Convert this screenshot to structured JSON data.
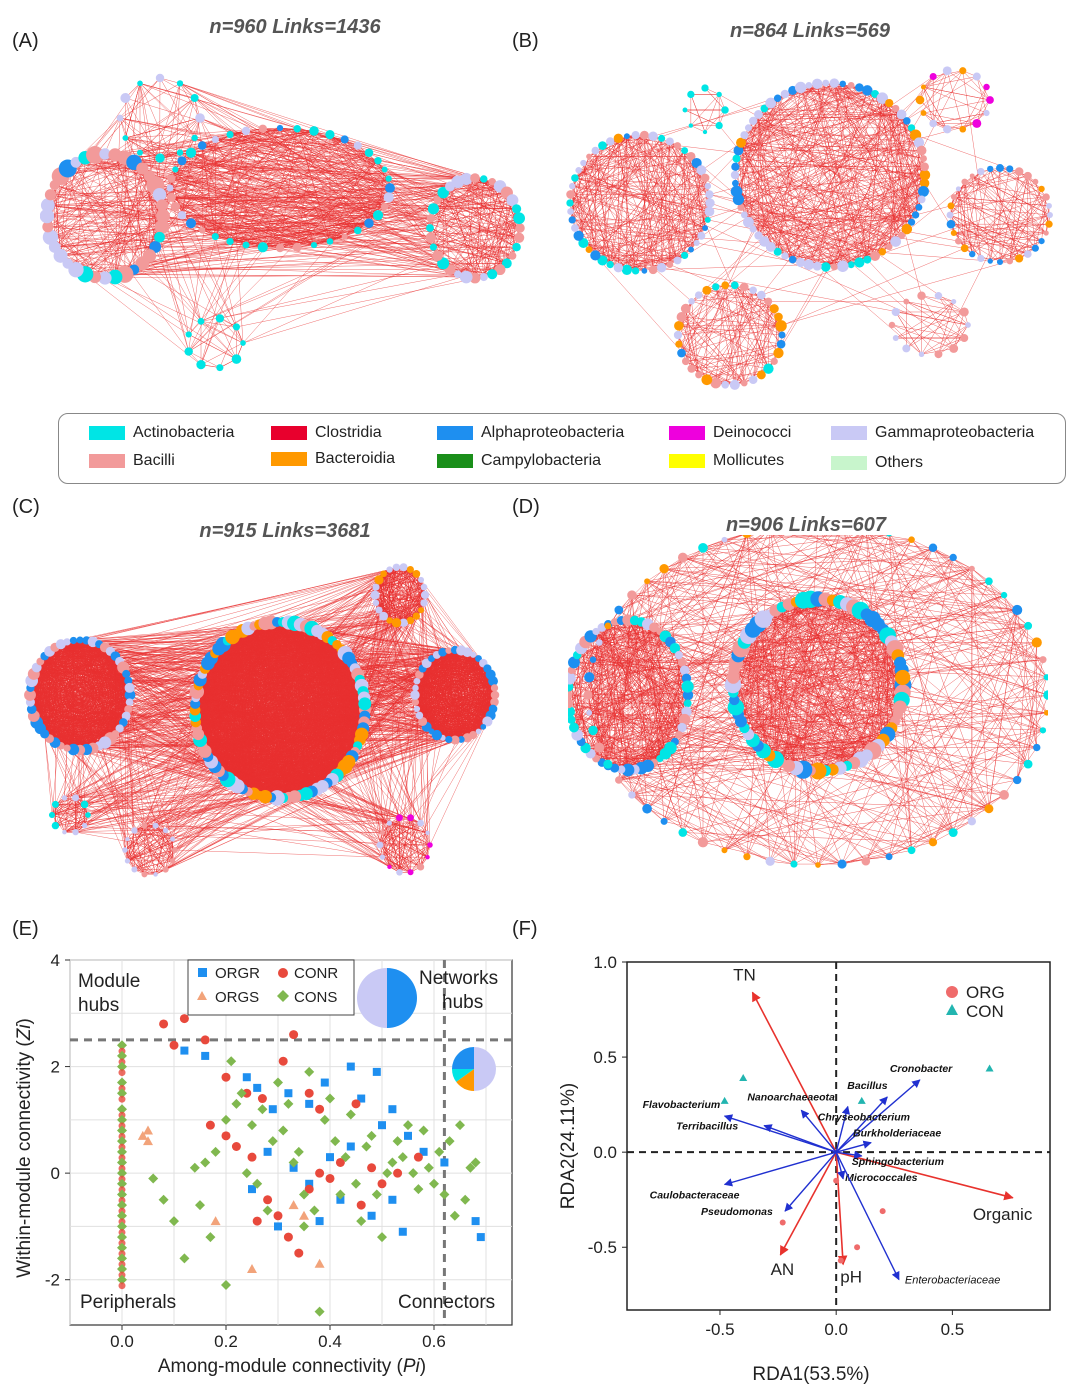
{
  "panels": {
    "A": {
      "letter": "(A)",
      "title": "n=960   Links=1436"
    },
    "B": {
      "letter": "(B)",
      "title": "n=864   Links=569"
    },
    "C": {
      "letter": "(C)",
      "title": "n=915   Links=3681"
    },
    "D": {
      "letter": "(D)",
      "title": "n=906   Links=607"
    },
    "E": {
      "letter": "(E)"
    },
    "F": {
      "letter": "(F)"
    }
  },
  "legend": {
    "items": [
      {
        "label": "Actinobacteria",
        "color": "#00e5e5"
      },
      {
        "label": "Clostridia",
        "color": "#e8002d"
      },
      {
        "label": "Alphaproteobacteria",
        "color": "#1e8ff0"
      },
      {
        "label": "Deinococci",
        "color": "#ee00dd"
      },
      {
        "label": "Gammaproteobacteria",
        "color": "#c9c9f5"
      },
      {
        "label": "Bacilli",
        "color": "#f29a9a"
      },
      {
        "label": "Bacteroidia",
        "color": "#ff9900"
      },
      {
        "label": "Campylobacteria",
        "color": "#1a8f1a"
      },
      {
        "label": "Mollicutes",
        "color": "#ffff00"
      },
      {
        "label": "Others",
        "color": "#c8f5cc"
      }
    ]
  },
  "chart_data": [
    {
      "type": "scatter",
      "panel": "E",
      "xlabel_prefix": "Among-module connectivity (",
      "xlabel_var": "Pi",
      "xlabel_suffix": ")",
      "ylabel_prefix": "Within-module connectivity (",
      "ylabel_var": "Zi",
      "ylabel_suffix": ")",
      "xlim": [
        -0.1,
        0.75
      ],
      "ylim": [
        -2.85,
        4
      ],
      "xticks": [
        "0.0",
        "0.2",
        "0.4",
        "0.6"
      ],
      "xtick_values": [
        0,
        0.2,
        0.4,
        0.6
      ],
      "yticks": [
        "-2",
        "0",
        "2",
        "4"
      ],
      "ytick_values": [
        -2,
        0,
        2,
        4
      ],
      "thresholds": {
        "zi": 2.5,
        "pi": 0.62
      },
      "region_labels": {
        "module_hubs_1": "Module",
        "module_hubs_2": "hubs",
        "network_hubs_1": "Networks",
        "network_hubs_2": "hubs",
        "peripherals": "Peripherals",
        "connectors": "Connectors"
      },
      "legend": [
        {
          "label": "ORGR",
          "color": "#1e8ff0",
          "shape": "square"
        },
        {
          "label": "CONR",
          "color": "#e8493c",
          "shape": "circle"
        },
        {
          "label": "ORGS",
          "color": "#f2a37a",
          "shape": "triangle"
        },
        {
          "label": "CONS",
          "color": "#80b84f",
          "shape": "diamond"
        }
      ],
      "series": [
        {
          "name": "ORGR",
          "points": [
            [
              0.12,
              2.3
            ],
            [
              0.16,
              2.2
            ],
            [
              0.24,
              1.8
            ],
            [
              0.26,
              1.6
            ],
            [
              0.29,
              1.2
            ],
            [
              0.32,
              1.5
            ],
            [
              0.36,
              1.3
            ],
            [
              0.39,
              1.7
            ],
            [
              0.44,
              2.0
            ],
            [
              0.46,
              1.4
            ],
            [
              0.49,
              1.9
            ],
            [
              0.52,
              1.2
            ],
            [
              0.28,
              0.4
            ],
            [
              0.33,
              0.1
            ],
            [
              0.36,
              -0.2
            ],
            [
              0.4,
              0.3
            ],
            [
              0.44,
              0.5
            ],
            [
              0.48,
              -0.8
            ],
            [
              0.52,
              -0.5
            ],
            [
              0.55,
              0.7
            ],
            [
              0.68,
              -0.9
            ],
            [
              0.69,
              -1.2
            ],
            [
              0.58,
              0.4
            ],
            [
              0.62,
              0.2
            ],
            [
              0.25,
              -0.3
            ],
            [
              0.3,
              -1.0
            ],
            [
              0.38,
              -0.9
            ],
            [
              0.42,
              -0.5
            ],
            [
              0.5,
              0.9
            ],
            [
              0.54,
              -1.1
            ]
          ]
        },
        {
          "name": "CONR",
          "points": [
            [
              0.08,
              2.8
            ],
            [
              0.12,
              2.9
            ],
            [
              0.1,
              2.4
            ],
            [
              0.16,
              2.5
            ],
            [
              0.2,
              1.8
            ],
            [
              0.24,
              1.5
            ],
            [
              0.27,
              1.4
            ],
            [
              0.31,
              2.1
            ],
            [
              0.33,
              2.6
            ],
            [
              0.36,
              1.5
            ],
            [
              0.38,
              1.2
            ],
            [
              0.45,
              1.3
            ],
            [
              0.17,
              0.9
            ],
            [
              0.2,
              0.7
            ],
            [
              0.22,
              0.5
            ],
            [
              0.25,
              0.3
            ],
            [
              0.28,
              -0.5
            ],
            [
              0.3,
              -0.8
            ],
            [
              0.32,
              -1.2
            ],
            [
              0.36,
              -0.3
            ],
            [
              0.38,
              0.0
            ],
            [
              0.42,
              0.2
            ],
            [
              0.48,
              0.1
            ],
            [
              0.5,
              -0.2
            ],
            [
              0.53,
              0.0
            ],
            [
              0.57,
              0.3
            ],
            [
              0.26,
              -0.9
            ],
            [
              0.34,
              -1.5
            ],
            [
              0.4,
              -0.1
            ],
            [
              0.46,
              -0.6
            ]
          ]
        },
        {
          "name": "ORGS",
          "points": [
            [
              0.04,
              0.7
            ],
            [
              0.05,
              0.6
            ],
            [
              0.05,
              0.8
            ],
            [
              0.25,
              -1.8
            ],
            [
              0.33,
              -0.6
            ],
            [
              0.35,
              -0.8
            ],
            [
              0.38,
              -1.7
            ],
            [
              0.18,
              -0.9
            ]
          ]
        },
        {
          "name": "CONS",
          "points": [
            [
              0.06,
              -0.1
            ],
            [
              0.08,
              -0.5
            ],
            [
              0.1,
              -0.9
            ],
            [
              0.12,
              -1.6
            ],
            [
              0.15,
              -0.6
            ],
            [
              0.16,
              0.2
            ],
            [
              0.18,
              0.4
            ],
            [
              0.2,
              1.0
            ],
            [
              0.21,
              2.1
            ],
            [
              0.23,
              1.5
            ],
            [
              0.25,
              0.9
            ],
            [
              0.27,
              1.2
            ],
            [
              0.29,
              0.6
            ],
            [
              0.31,
              0.8
            ],
            [
              0.33,
              0.2
            ],
            [
              0.35,
              -0.4
            ],
            [
              0.37,
              -0.7
            ],
            [
              0.38,
              -2.6
            ],
            [
              0.39,
              1.0
            ],
            [
              0.41,
              0.6
            ],
            [
              0.43,
              0.3
            ],
            [
              0.45,
              -0.2
            ],
            [
              0.47,
              0.5
            ],
            [
              0.49,
              -0.4
            ],
            [
              0.51,
              0.0
            ],
            [
              0.53,
              0.6
            ],
            [
              0.55,
              0.9
            ],
            [
              0.57,
              -0.3
            ],
            [
              0.59,
              0.1
            ],
            [
              0.61,
              0.4
            ],
            [
              0.63,
              0.6
            ],
            [
              0.65,
              0.9
            ],
            [
              0.67,
              0.1
            ],
            [
              0.66,
              -0.5
            ],
            [
              0.64,
              -0.8
            ],
            [
              0.6,
              -0.2
            ],
            [
              0.56,
              0.0
            ],
            [
              0.52,
              0.2
            ],
            [
              0.48,
              0.7
            ],
            [
              0.44,
              1.1
            ],
            [
              0.4,
              1.4
            ],
            [
              0.36,
              1.9
            ],
            [
              0.3,
              1.7
            ],
            [
              0.22,
              1.3
            ],
            [
              0.14,
              0.1
            ],
            [
              0.17,
              -1.2
            ],
            [
              0.2,
              -2.1
            ],
            [
              0.26,
              -0.2
            ],
            [
              0.34,
              0.4
            ],
            [
              0.46,
              -0.9
            ],
            [
              0.54,
              0.3
            ],
            [
              0.62,
              -0.4
            ],
            [
              0.68,
              0.2
            ],
            [
              0.35,
              -1.0
            ],
            [
              0.42,
              -0.4
            ],
            [
              0.58,
              0.8
            ],
            [
              0.5,
              -1.2
            ],
            [
              0.24,
              0.0
            ],
            [
              0.28,
              -0.7
            ],
            [
              0.32,
              1.3
            ]
          ]
        },
        {
          "name": "peripherals",
          "points": [
            [
              0,
              2.4
            ],
            [
              0,
              2.2
            ],
            [
              0,
              2.0
            ],
            [
              0,
              1.7
            ],
            [
              0,
              1.5
            ],
            [
              0,
              1.2
            ],
            [
              0,
              1.0
            ],
            [
              0,
              0.8
            ],
            [
              0,
              0.6
            ],
            [
              0,
              0.4
            ],
            [
              0,
              0.2
            ],
            [
              0,
              0.0
            ],
            [
              0,
              -0.2
            ],
            [
              0,
              -0.4
            ],
            [
              0,
              -0.6
            ],
            [
              0,
              -0.8
            ],
            [
              0,
              -1.0
            ],
            [
              0,
              -1.2
            ],
            [
              0,
              -1.4
            ],
            [
              0,
              -1.6
            ],
            [
              0,
              -1.8
            ],
            [
              0,
              -2.0
            ]
          ]
        }
      ],
      "pies": [
        {
          "label": "module",
          "fractions": [
            0.5,
            0.5
          ],
          "colors": [
            "#1e8ff0",
            "#c9c9f5"
          ]
        },
        {
          "label": "network",
          "fractions": [
            0.5,
            0.15,
            0.1,
            0.25
          ],
          "colors": [
            "#c9c9f5",
            "#ff9900",
            "#00e5e5",
            "#1e8ff0"
          ]
        }
      ]
    },
    {
      "type": "scatter",
      "panel": "F",
      "xlabel": "RDA1(53.5%)",
      "ylabel": "RDA2(24.11%)",
      "xlim": [
        -0.9,
        0.92
      ],
      "ylim": [
        -0.83,
        1.0
      ],
      "xticks": [
        "-0.5",
        "0.0",
        "0.5"
      ],
      "xtick_values": [
        -0.5,
        0,
        0.5
      ],
      "yticks": [
        "-0.5",
        "0.0",
        "0.5",
        "1.0"
      ],
      "ytick_values": [
        -0.5,
        0,
        0.5,
        1.0
      ],
      "legend": [
        {
          "label": "ORG",
          "color": "#ef6b6b",
          "shape": "circle"
        },
        {
          "label": "CON",
          "color": "#22b5b0",
          "shape": "triangle"
        }
      ],
      "env_arrows": [
        {
          "label": "TN",
          "x": -0.36,
          "y": 0.84
        },
        {
          "label": "Organic",
          "x": 0.76,
          "y": -0.24
        },
        {
          "label": "AN",
          "x": -0.24,
          "y": -0.54
        },
        {
          "label": "pH",
          "x": 0.03,
          "y": -0.59
        }
      ],
      "taxa_arrows": [
        {
          "label": "Cronobacter",
          "x": 0.36,
          "y": 0.38
        },
        {
          "label": "Bacillus",
          "x": 0.22,
          "y": 0.29
        },
        {
          "label": "Nanoarchaeaeota",
          "x": -0.15,
          "y": 0.22
        },
        {
          "label": "Chryseobacterium",
          "x": 0.05,
          "y": 0.24
        },
        {
          "label": "Flavobacterium",
          "x": -0.48,
          "y": 0.19
        },
        {
          "label": "Terribacillus",
          "x": -0.31,
          "y": 0.14
        },
        {
          "label": "Burkholderiaceae",
          "x": 0.15,
          "y": 0.05
        },
        {
          "label": "Sphingobacterium",
          "x": 0.11,
          "y": -0.02
        },
        {
          "label": "Caulobacteraceae",
          "x": -0.48,
          "y": -0.17
        },
        {
          "label": "Pseudomonas",
          "x": -0.22,
          "y": -0.31
        },
        {
          "label": "Micrococcales",
          "x": 0.03,
          "y": -0.14
        },
        {
          "label": "Enterobacteriaceae",
          "x": 0.27,
          "y": -0.67
        }
      ],
      "samples": [
        {
          "group": "CON",
          "x": -0.4,
          "y": 0.39
        },
        {
          "group": "CON",
          "x": -0.48,
          "y": 0.27
        },
        {
          "group": "CON",
          "x": 0.11,
          "y": 0.27
        },
        {
          "group": "CON",
          "x": 0.66,
          "y": 0.44
        },
        {
          "group": "ORG",
          "x": -0.23,
          "y": -0.37
        },
        {
          "group": "ORG",
          "x": 0.2,
          "y": -0.31
        },
        {
          "group": "ORG",
          "x": 0.09,
          "y": -0.5
        },
        {
          "group": "ORG",
          "x": 0.02,
          "y": -0.57
        },
        {
          "group": "ORG",
          "x": 0.0,
          "y": -0.15
        }
      ]
    }
  ]
}
